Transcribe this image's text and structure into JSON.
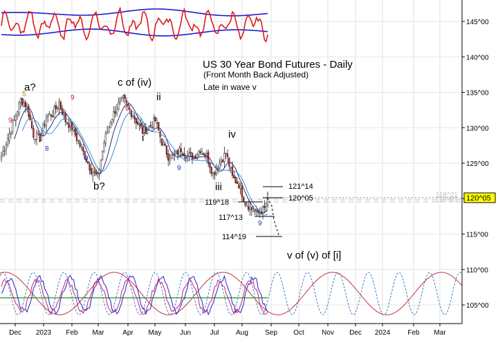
{
  "chart_data": {
    "type": "candlestick",
    "title": "US 30 Year Bond Futures - Daily",
    "subtitle": "(Front Month Back Adjusted)",
    "note": "Late in wave v",
    "x_month_labels": [
      "Dec",
      "2023",
      "Feb",
      "Mar",
      "Apr",
      "May",
      "Jun",
      "Jul",
      "Aug",
      "Sep",
      "Oct",
      "Nov",
      "Dec",
      "2024",
      "Feb",
      "Mar"
    ],
    "y_ticks": [
      "145^00",
      "140^00",
      "135^00",
      "130^00",
      "125^00",
      "120^00",
      "115^00",
      "110^00",
      "105^00"
    ],
    "y_tick_values": [
      145,
      140,
      135,
      130,
      125,
      120,
      115,
      110,
      105
    ],
    "price_scale_range": [
      103,
      149
    ],
    "current_price": "120^05",
    "current_price_value": 120.16,
    "background_levels": [
      "118^21",
      "118^01"
    ],
    "wave_labels": [
      "a?",
      "b?",
      "c of (iv)",
      "i",
      "ii",
      "iii",
      "iv",
      "v of (v) of [i]"
    ],
    "level_labels": [
      "121^14",
      "120^05",
      "119^18",
      "117^13",
      "114^19"
    ],
    "count_labels": [
      "5",
      "9",
      "8",
      "9",
      "5",
      "9",
      "9",
      "9",
      "5",
      "9"
    ],
    "close_series": {
      "x": [
        0,
        4,
        8,
        12,
        16,
        20,
        24,
        28,
        32,
        36,
        40,
        44,
        48,
        52,
        56,
        60,
        64,
        68,
        72,
        76,
        80,
        84,
        88,
        92,
        96,
        100,
        104,
        108,
        112,
        116,
        120,
        124,
        128,
        132,
        136,
        140,
        144,
        148,
        152,
        156,
        160,
        164,
        166
      ],
      "close": [
        126,
        128.5,
        131,
        134,
        133,
        129,
        128.5,
        131.5,
        132,
        133.5,
        131,
        130,
        128,
        126,
        124,
        123,
        128,
        131,
        133,
        134,
        132.5,
        131,
        129.5,
        130,
        131,
        128,
        126,
        126,
        127,
        126,
        126,
        127,
        126,
        123.5,
        125,
        126.5,
        123,
        122,
        119.5,
        118.5,
        118,
        118.5,
        120.2
      ]
    },
    "oscillator": {
      "red_range": [
        0,
        100
      ],
      "blue_bands": [
        20,
        80
      ]
    },
    "cycle_panel": {
      "dashed_cycle_period": 19,
      "red_cycle_period": 68,
      "green_level": 106
    }
  }
}
